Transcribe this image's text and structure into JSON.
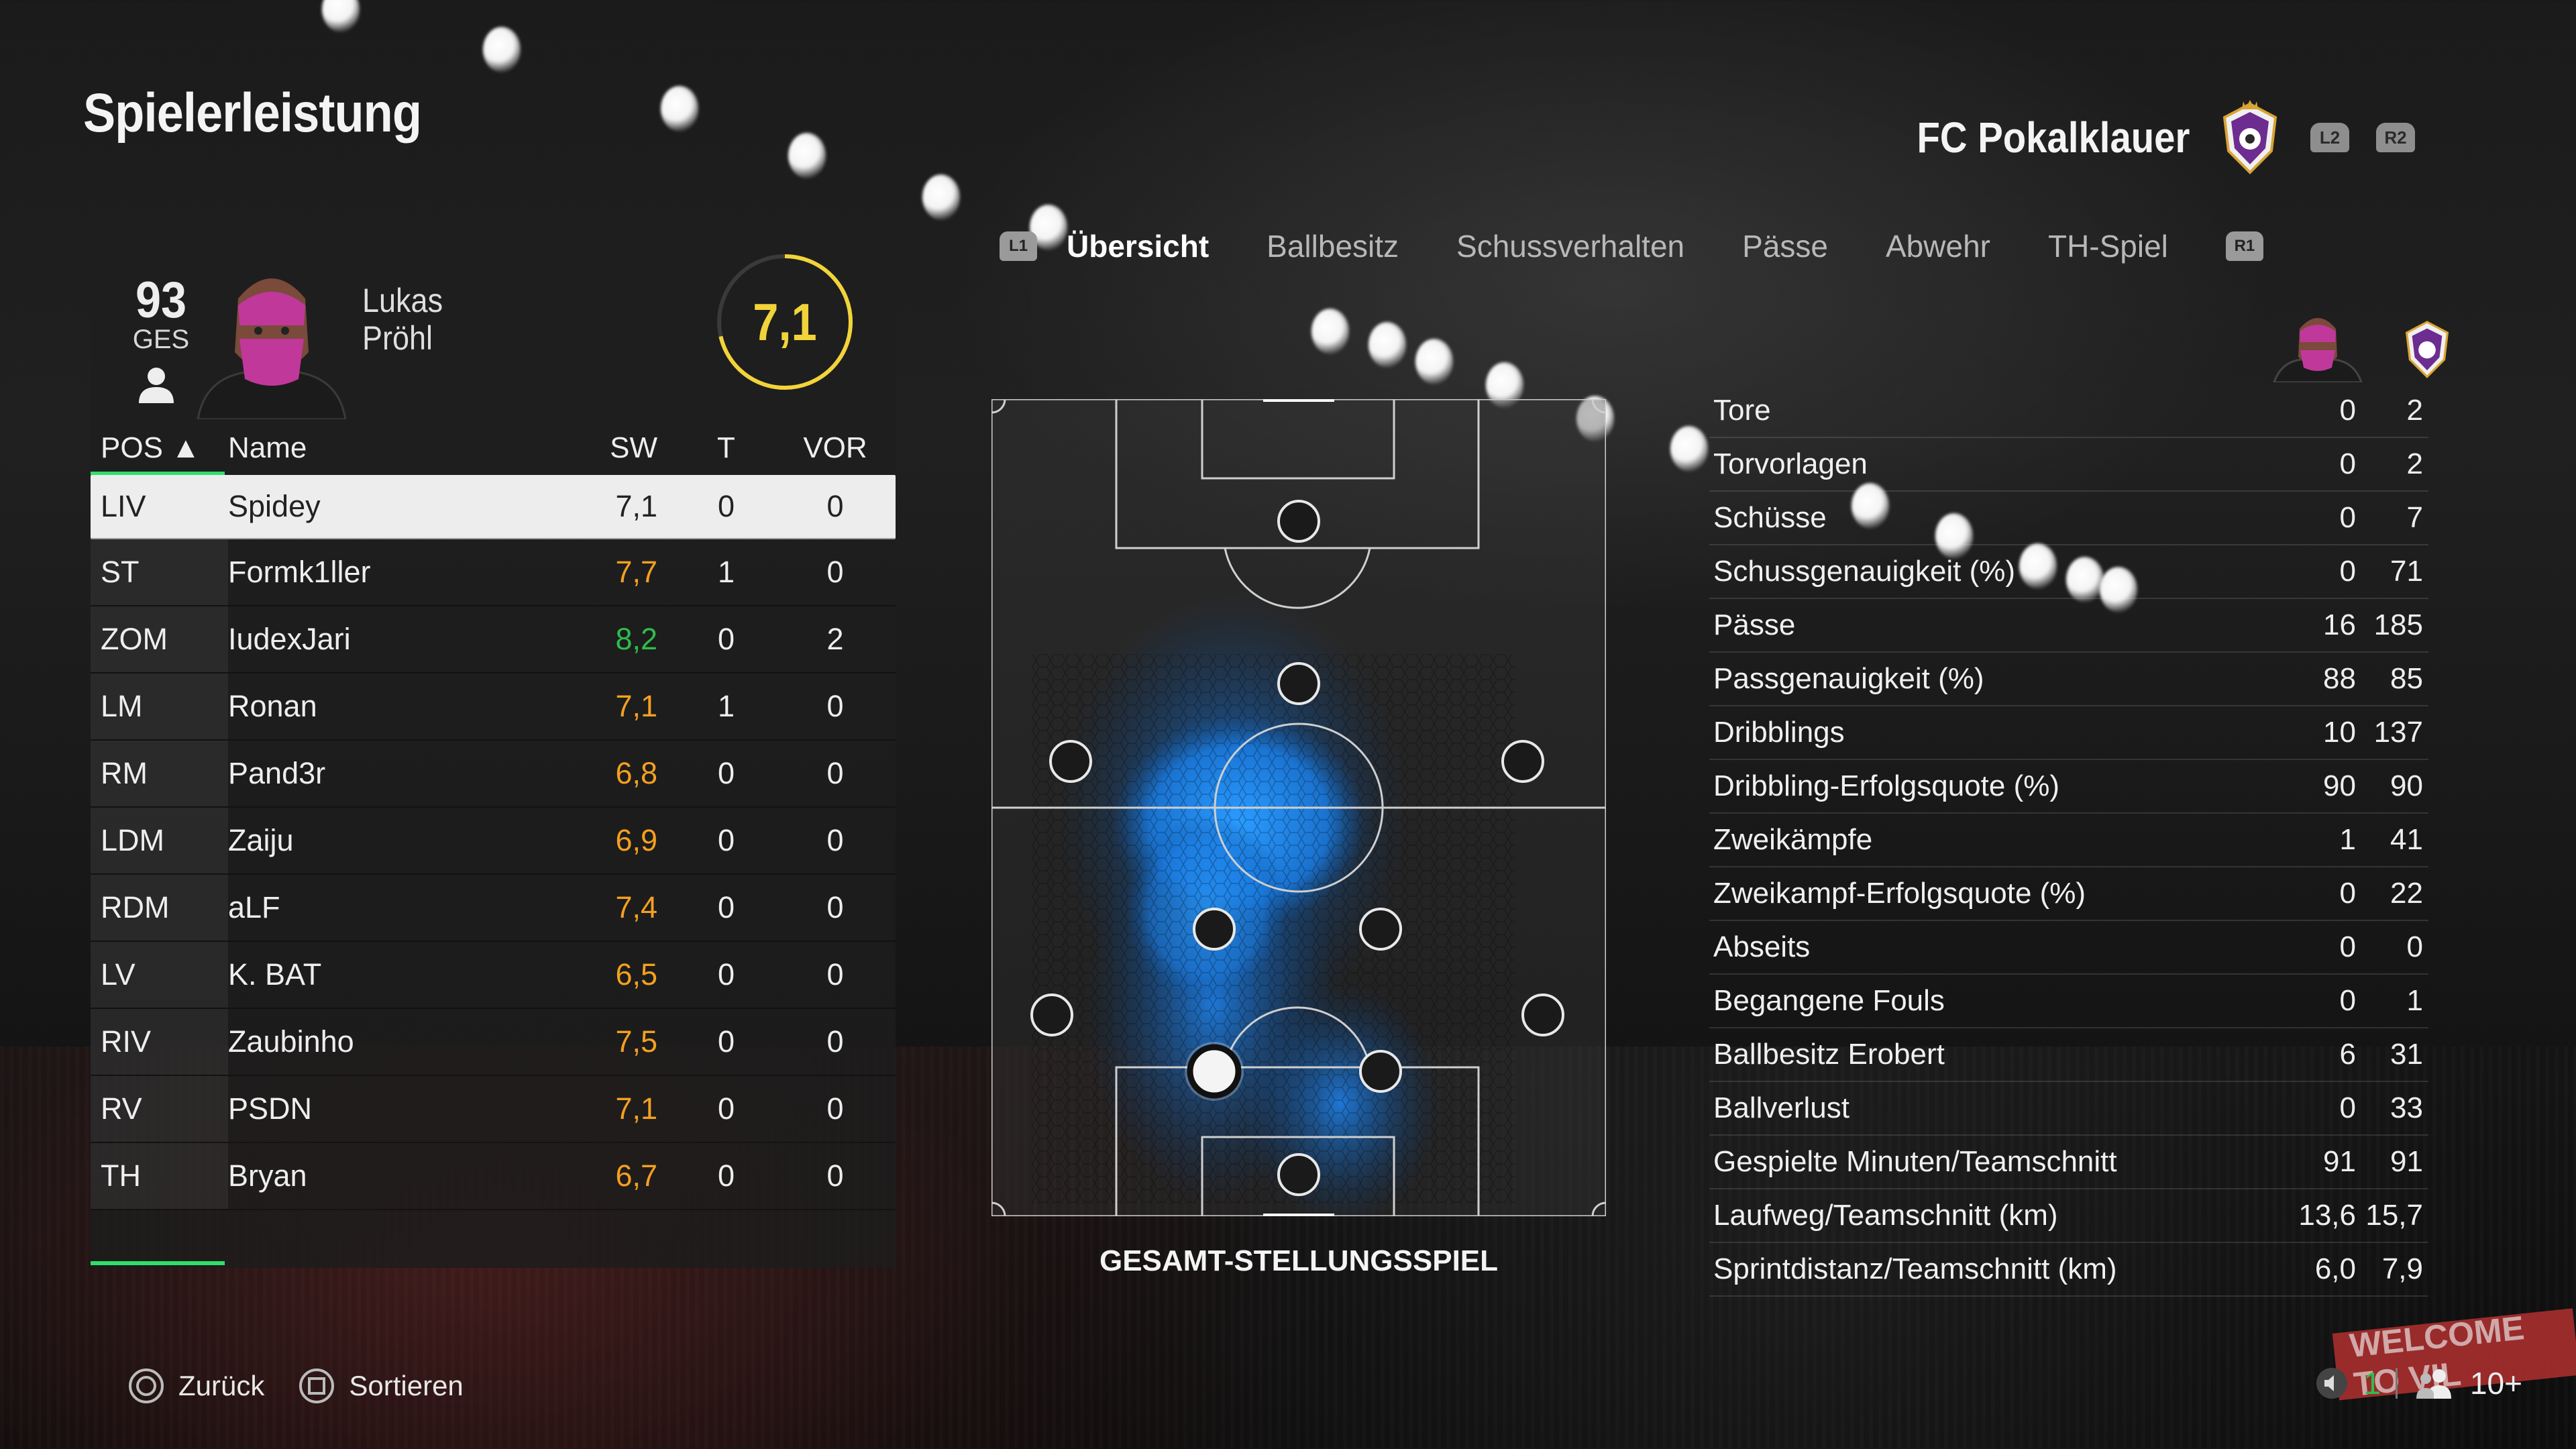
{
  "title": "Spielerleistung",
  "club": {
    "name": "FC Pokalklauer",
    "crest_icon": "club-crest-icon",
    "btn_prev": "L2",
    "btn_next": "R2"
  },
  "player": {
    "overall": "93",
    "overall_label": "GES",
    "first_name": "Lukas",
    "last_name": "Pröhl",
    "rating": "7,1"
  },
  "table": {
    "headers": {
      "pos": "POS ▲",
      "name": "Name",
      "sw": "SW",
      "t": "T",
      "vor": "VOR"
    },
    "rows": [
      {
        "pos": "LIV",
        "name": "Spidey",
        "sw": "7,1",
        "t": "0",
        "vor": "0",
        "color": "selected"
      },
      {
        "pos": "ST",
        "name": "Formk1ller",
        "sw": "7,7",
        "t": "1",
        "vor": "0",
        "color": "#f4a020"
      },
      {
        "pos": "ZOM",
        "name": "IudexJari",
        "sw": "8,2",
        "t": "0",
        "vor": "2",
        "color": "#2ebd4b"
      },
      {
        "pos": "LM",
        "name": "Ronan",
        "sw": "7,1",
        "t": "1",
        "vor": "0",
        "color": "#f4a020"
      },
      {
        "pos": "RM",
        "name": "Pand3r",
        "sw": "6,8",
        "t": "0",
        "vor": "0",
        "color": "#f4a020"
      },
      {
        "pos": "LDM",
        "name": "Zaiju",
        "sw": "6,9",
        "t": "0",
        "vor": "0",
        "color": "#f4a020"
      },
      {
        "pos": "RDM",
        "name": "aLF",
        "sw": "7,4",
        "t": "0",
        "vor": "0",
        "color": "#f4a020"
      },
      {
        "pos": "LV",
        "name": "K. BAT",
        "sw": "6,5",
        "t": "0",
        "vor": "0",
        "color": "#f4a020"
      },
      {
        "pos": "RIV",
        "name": "Zaubinho",
        "sw": "7,5",
        "t": "0",
        "vor": "0",
        "color": "#f4a020"
      },
      {
        "pos": "RV",
        "name": "PSDN",
        "sw": "7,1",
        "t": "0",
        "vor": "0",
        "color": "#f4a020"
      },
      {
        "pos": "TH",
        "name": "Bryan",
        "sw": "6,7",
        "t": "0",
        "vor": "0",
        "color": "#f4a020"
      }
    ]
  },
  "tabs": {
    "btn_left": "L1",
    "btn_right": "R1",
    "items": [
      {
        "label": "Übersicht",
        "active": true
      },
      {
        "label": "Ballbesitz",
        "active": false
      },
      {
        "label": "Schussverhalten",
        "active": false
      },
      {
        "label": "Pässe",
        "active": false
      },
      {
        "label": "Abwehr",
        "active": false
      },
      {
        "label": "TH-Spiel",
        "active": false
      }
    ]
  },
  "pitch": {
    "label": "GESAMT-STELLUNGSSPIEL",
    "heatmap_color": "#1e8fff"
  },
  "stats": [
    {
      "label": "Tore",
      "player": "0",
      "team": "2"
    },
    {
      "label": "Torvorlagen",
      "player": "0",
      "team": "2"
    },
    {
      "label": "Schüsse",
      "player": "0",
      "team": "7"
    },
    {
      "label": "Schussgenauigkeit (%)",
      "player": "0",
      "team": "71"
    },
    {
      "label": "Pässe",
      "player": "16",
      "team": "185"
    },
    {
      "label": "Passgenauigkeit (%)",
      "player": "88",
      "team": "85"
    },
    {
      "label": "Dribblings",
      "player": "10",
      "team": "137"
    },
    {
      "label": "Dribbling-Erfolgsquote (%)",
      "player": "90",
      "team": "90"
    },
    {
      "label": "Zweikämpfe",
      "player": "1",
      "team": "41"
    },
    {
      "label": "Zweikampf-Erfolgsquote (%)",
      "player": "0",
      "team": "22"
    },
    {
      "label": "Abseits",
      "player": "0",
      "team": "0"
    },
    {
      "label": "Begangene Fouls",
      "player": "0",
      "team": "1"
    },
    {
      "label": "Ballbesitz Erobert",
      "player": "6",
      "team": "31"
    },
    {
      "label": "Ballverlust",
      "player": "0",
      "team": "33"
    },
    {
      "label": "Gespielte Minuten/Teamschnitt",
      "player": "91",
      "team": "91"
    },
    {
      "label": "Laufweg/Teamschnitt (km)",
      "player": "13,6",
      "team": "15,7"
    },
    {
      "label": "Sprintdistanz/Teamschnitt (km)",
      "player": "6,0",
      "team": "7,9"
    }
  ],
  "footer": {
    "back": "Zurück",
    "sort": "Sortieren",
    "voice_count": "1",
    "party_count": "10+",
    "banner": "WELCOME TO VIL"
  }
}
